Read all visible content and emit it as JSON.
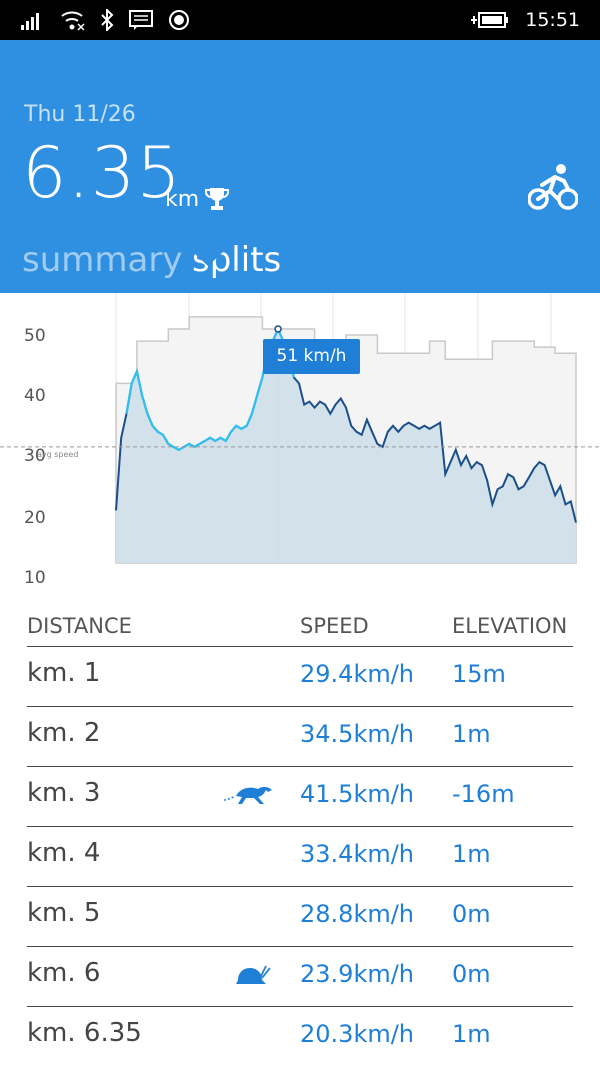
{
  "status_bar": {
    "time": "15:51",
    "icons": [
      "signal-icon",
      "wifi-icon",
      "bluetooth-icon",
      "message-icon",
      "record-icon",
      "battery-charging-icon"
    ]
  },
  "header": {
    "date": "Thu 11/26",
    "distance": "6.35",
    "unit": "km",
    "activity_icon": "bike-icon",
    "badge_icon": "trophy-icon",
    "tabs": [
      {
        "label": "summary",
        "active": false
      },
      {
        "label": "splits",
        "active": true
      }
    ],
    "accent_color": "#2f8fe0"
  },
  "chart_data": {
    "type": "area",
    "series": [
      {
        "values": [
          21,
          33,
          37,
          42,
          44,
          40,
          37,
          35,
          34,
          33.5,
          32,
          31.5,
          31,
          31.5,
          32,
          31.5,
          32,
          32.5,
          33,
          32.5,
          33,
          32.5,
          34,
          35,
          34.5,
          35,
          37,
          40,
          43,
          47,
          49,
          51,
          49,
          47,
          43,
          42,
          38.5,
          39,
          38,
          39,
          38.5,
          37,
          38.5,
          39.5,
          38,
          35,
          34,
          33.5,
          36,
          34,
          32,
          31.5,
          34,
          35,
          34,
          35,
          35.5,
          35,
          34.5,
          35,
          34.5,
          35,
          35.5,
          27,
          29,
          31,
          28.5,
          30,
          28,
          29,
          28.5,
          26,
          22,
          24.5,
          25,
          27,
          26.5,
          24.5,
          25,
          26.5,
          28,
          29,
          28.5,
          26,
          23.5,
          25,
          22,
          22.5,
          19
        ]
      }
    ],
    "ytick_labels": [
      "50",
      "40",
      "30",
      "20",
      "10"
    ],
    "ylim": [
      10,
      54
    ],
    "reference_line": {
      "label": "avg speed",
      "value": 31.5
    },
    "elevation_profile": [
      42,
      42,
      42,
      42,
      49,
      49,
      49,
      49,
      49,
      49,
      51,
      51,
      51,
      51,
      53,
      53,
      53,
      53,
      53,
      53,
      53,
      53,
      53,
      53,
      53,
      53,
      53,
      53,
      51,
      51,
      51,
      51,
      51,
      51,
      51,
      51,
      51,
      51,
      48,
      48,
      48,
      48,
      48,
      48,
      50,
      50,
      50,
      50,
      50,
      50,
      47,
      47,
      47,
      47,
      47,
      47,
      47,
      47,
      47,
      47,
      49,
      49,
      49,
      46,
      46,
      46,
      46,
      46,
      46,
      46,
      46,
      46,
      49,
      49,
      49,
      49,
      49,
      49,
      49,
      49,
      48,
      48,
      48,
      48,
      47,
      47,
      47,
      47
    ],
    "tooltip": "51 km/h",
    "colors": {
      "line": "#1b4f8a",
      "highlight": "#2ec0f0",
      "fill": "#d0dfe9",
      "elevation": "#c9c9c9"
    }
  },
  "table": {
    "headers": {
      "distance": "DISTANCE",
      "speed": "SPEED",
      "elevation": "ELEVATION"
    },
    "rows": [
      {
        "distance": "km. 1",
        "speed": "29.4km/h",
        "elevation": "15m",
        "icon": ""
      },
      {
        "distance": "km. 2",
        "speed": "34.5km/h",
        "elevation": "1m",
        "icon": ""
      },
      {
        "distance": "km. 3",
        "speed": "41.5km/h",
        "elevation": "-16m",
        "icon": "cheetah-fastest-icon"
      },
      {
        "distance": "km. 4",
        "speed": "33.4km/h",
        "elevation": "1m",
        "icon": ""
      },
      {
        "distance": "km. 5",
        "speed": "28.8km/h",
        "elevation": "0m",
        "icon": ""
      },
      {
        "distance": "km. 6",
        "speed": "23.9km/h",
        "elevation": "0m",
        "icon": "snail-slowest-icon"
      },
      {
        "distance": "km. 6.35",
        "speed": "20.3km/h",
        "elevation": "1m",
        "icon": ""
      }
    ]
  }
}
